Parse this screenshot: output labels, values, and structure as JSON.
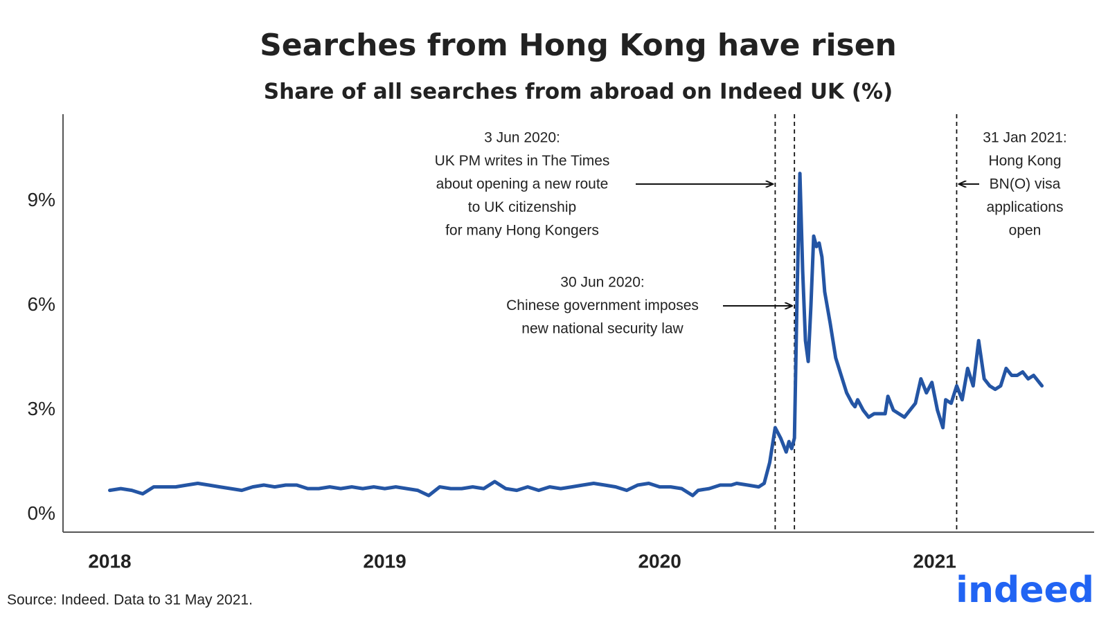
{
  "chart_data": {
    "type": "line",
    "title": "Searches from Hong Kong have risen",
    "subtitle": "Share of all searches from abroad on Indeed UK (%)",
    "source": "Source: Indeed. Data to 31 May 2021.",
    "logo": "indeed",
    "xlim": [
      2017.83,
      2021.58
    ],
    "xticks": [
      2018,
      2019,
      2020,
      2021
    ],
    "ylim": [
      -0.5,
      11.5
    ],
    "yticks": [
      {
        "value": 0,
        "label": "0%"
      },
      {
        "value": 3,
        "label": "3%"
      },
      {
        "value": 6,
        "label": "6%"
      },
      {
        "value": 9,
        "label": "9%"
      }
    ],
    "grid": false,
    "annotations": [
      {
        "x": 2020.42,
        "text": [
          "3 Jun 2020:",
          "UK PM writes in The Times",
          "about opening a new route",
          "to UK citizenship",
          "for many Hong Kongers"
        ]
      },
      {
        "x": 2020.49,
        "text": [
          "30 Jun 2020:",
          "Chinese government imposes",
          "new national security law"
        ]
      },
      {
        "x": 2021.08,
        "text": [
          "31 Jan 2021:",
          "Hong Kong",
          "BN(O) visa",
          "applications",
          "open"
        ]
      }
    ],
    "x": [
      2018.0,
      2018.04,
      2018.08,
      2018.12,
      2018.16,
      2018.2,
      2018.24,
      2018.28,
      2018.32,
      2018.36,
      2018.4,
      2018.44,
      2018.48,
      2018.52,
      2018.56,
      2018.6,
      2018.64,
      2018.68,
      2018.72,
      2018.76,
      2018.8,
      2018.84,
      2018.88,
      2018.92,
      2018.96,
      2019.0,
      2019.04,
      2019.08,
      2019.12,
      2019.16,
      2019.2,
      2019.24,
      2019.28,
      2019.32,
      2019.36,
      2019.4,
      2019.44,
      2019.48,
      2019.52,
      2019.56,
      2019.6,
      2019.64,
      2019.68,
      2019.72,
      2019.76,
      2019.8,
      2019.84,
      2019.88,
      2019.92,
      2019.96,
      2020.0,
      2020.04,
      2020.08,
      2020.12,
      2020.14,
      2020.18,
      2020.22,
      2020.26,
      2020.28,
      2020.32,
      2020.36,
      2020.38,
      2020.4,
      2020.42,
      2020.44,
      2020.46,
      2020.47,
      2020.48,
      2020.49,
      2020.5,
      2020.51,
      2020.52,
      2020.53,
      2020.54,
      2020.55,
      2020.56,
      2020.57,
      2020.58,
      2020.59,
      2020.6,
      2020.62,
      2020.64,
      2020.66,
      2020.68,
      2020.7,
      2020.71,
      2020.72,
      2020.74,
      2020.76,
      2020.78,
      2020.8,
      2020.82,
      2020.83,
      2020.85,
      2020.87,
      2020.89,
      2020.91,
      2020.93,
      2020.95,
      2020.97,
      2020.99,
      2021.01,
      2021.03,
      2021.04,
      2021.06,
      2021.08,
      2021.1,
      2021.12,
      2021.14,
      2021.16,
      2021.18,
      2021.2,
      2021.22,
      2021.24,
      2021.26,
      2021.28,
      2021.3,
      2021.32,
      2021.34,
      2021.36,
      2021.38,
      2021.39
    ],
    "series": [
      {
        "name": "Hong Kong",
        "color": "#2455a4",
        "values": [
          0.7,
          0.75,
          0.7,
          0.6,
          0.8,
          0.8,
          0.8,
          0.85,
          0.9,
          0.85,
          0.8,
          0.75,
          0.7,
          0.8,
          0.85,
          0.8,
          0.85,
          0.85,
          0.75,
          0.75,
          0.8,
          0.75,
          0.8,
          0.75,
          0.8,
          0.75,
          0.8,
          0.75,
          0.7,
          0.55,
          0.8,
          0.75,
          0.75,
          0.8,
          0.75,
          0.95,
          0.75,
          0.7,
          0.8,
          0.7,
          0.8,
          0.75,
          0.8,
          0.85,
          0.9,
          0.85,
          0.8,
          0.7,
          0.85,
          0.9,
          0.8,
          0.8,
          0.75,
          0.55,
          0.7,
          0.75,
          0.85,
          0.85,
          0.9,
          0.85,
          0.8,
          0.9,
          1.5,
          2.5,
          2.2,
          1.8,
          2.1,
          1.9,
          2.2,
          6.5,
          9.8,
          7.0,
          5.0,
          4.4,
          6.0,
          8.0,
          7.7,
          7.8,
          7.4,
          6.4,
          5.5,
          4.5,
          4.0,
          3.5,
          3.2,
          3.1,
          3.3,
          3.0,
          2.8,
          2.9,
          2.9,
          2.9,
          3.4,
          3.0,
          2.9,
          2.8,
          3.0,
          3.2,
          3.9,
          3.5,
          3.8,
          3.0,
          2.5,
          3.3,
          3.2,
          3.7,
          3.3,
          4.2,
          3.7,
          5.0,
          3.9,
          3.7,
          3.6,
          3.7,
          4.2,
          4.0,
          4.0,
          4.1,
          3.9,
          4.0,
          3.8,
          3.7
        ]
      }
    ]
  }
}
